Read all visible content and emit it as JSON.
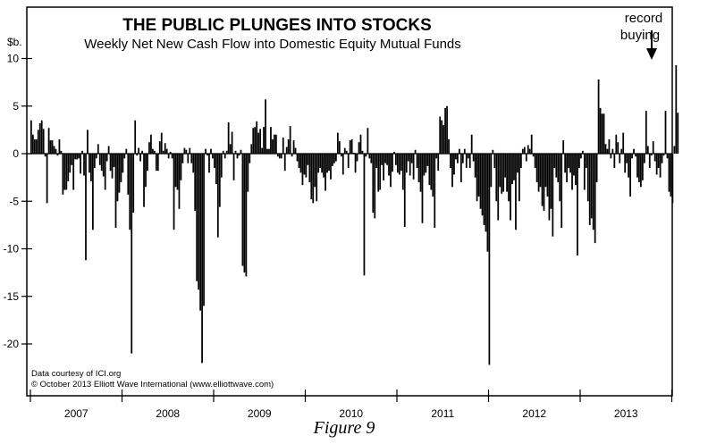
{
  "chart_data": {
    "type": "bar",
    "title": "THE PUBLIC PLUNGES INTO STOCKS",
    "subtitle": "Weekly Net New Cash Flow into Domestic Equity Mutual Funds",
    "ylabel": "$b.",
    "xlabel": "",
    "ylim": [
      -25,
      15
    ],
    "yticks": [
      10,
      5,
      0,
      -5,
      -10,
      -15,
      -20
    ],
    "ytick_labels": [
      "10",
      "5",
      "0",
      "-5",
      "-10",
      "-15",
      "-20"
    ],
    "xlim_years": [
      2007,
      2014
    ],
    "xtick_labels": [
      "2007",
      "2008",
      "2009",
      "2010",
      "2011",
      "2012",
      "2013"
    ],
    "grid": false,
    "annotation": {
      "line1": "record",
      "line2": "buying",
      "target_year": 2013
    },
    "series": [
      {
        "name": "2007",
        "values": [
          3.5,
          2,
          1.5,
          1.5,
          2.5,
          3.2,
          3.5,
          2.6,
          -0.3,
          -5.2,
          2.7,
          1.4,
          1.4,
          0.8,
          0.5,
          -0.2,
          1.5,
          0.3,
          -4.3,
          -3.8,
          -3.8,
          -2.9,
          -2.0,
          -1.2,
          -3.8,
          -0.6,
          -0.6,
          -0.5,
          -2.1,
          0.3,
          -2.3,
          -11.2,
          2.5,
          -2.0,
          -2.9,
          -8.0,
          -1.5,
          -0.5,
          1.0,
          -1.2,
          -1.8,
          -2.4,
          -3.8,
          -0.8,
          0.8,
          -1.8,
          -2.6,
          -1.4,
          -7.8,
          -5.0,
          -4.1,
          -3.0
        ]
      },
      {
        "name": "2008",
        "values": [
          -2.0,
          -0.5,
          0.5,
          -4.3,
          -8.0,
          -21.0,
          -6.2,
          3.5,
          -0.2,
          0.6,
          -0.8,
          0.3,
          -5.6,
          -3.5,
          -1.8,
          1.2,
          2.0,
          0.5,
          0.3,
          -1.8,
          -1.8,
          1.3,
          2.2,
          0.3,
          1.1,
          0.5,
          -0.5,
          0.2,
          -0.5,
          -8.0,
          -3.5,
          -3.8,
          -5.8,
          -2.8,
          -1.0,
          0.6,
          0.4,
          -1.0,
          0.6,
          -1.0,
          -2.0,
          -6.0,
          -13.4,
          -14.3,
          -16.5,
          -22.0,
          -16.0,
          0.5,
          -0.2,
          -2.0,
          0.5,
          -0.5
        ]
      },
      {
        "name": "2009",
        "values": [
          -1.5,
          -3.2,
          -8.8,
          -5.6,
          -2.5,
          0.3,
          -0.5,
          0.3,
          3.3,
          1.0,
          2.3,
          -2.8,
          0.3,
          -0.5,
          -0.2,
          0.4,
          -11.8,
          -12.5,
          -12.9,
          -4.0,
          -1.0,
          1.0,
          2.7,
          2.8,
          3.4,
          2.2,
          2.6,
          0.6,
          2.8,
          5.7,
          0.5,
          0.5,
          2.8,
          1.5,
          2.0,
          2.0,
          -0.3,
          -0.5,
          -0.5,
          1.7,
          -1.8,
          0.7,
          1.5,
          2.9,
          -0.3,
          1.4,
          0.6,
          -0.8,
          -1.5,
          -2.0,
          -3.3,
          -2.2
        ]
      },
      {
        "name": "2010",
        "values": [
          -2.5,
          -1.2,
          -3.0,
          -4.8,
          -5.2,
          -3.5,
          -5.0,
          -2.0,
          -1.5,
          -2.0,
          -2.5,
          -3.9,
          -2.0,
          -1.8,
          -2.7,
          -1.3,
          -1.0,
          -0.8,
          2.2,
          1.3,
          -0.3,
          -2.2,
          0.6,
          0.3,
          -1.5,
          1.4,
          1.5,
          0.1,
          -2.0,
          -0.8,
          1.2,
          2.0,
          0.3,
          -12.8,
          -0.3,
          2.7,
          -0.5,
          -1.0,
          -6.2,
          -6.8,
          -1.5,
          -4.0,
          -3.8,
          -1.2,
          -2.8,
          -1.0,
          -1.2,
          -2.3,
          -3.5,
          -1.9,
          0.2,
          -1.2
        ]
      },
      {
        "name": "2011",
        "values": [
          -2.0,
          -2.2,
          -1.8,
          -3.8,
          -7.7,
          -2.0,
          -0.8,
          -2.3,
          -1.0,
          -2.7,
          0.4,
          -1.5,
          -3.0,
          -4.0,
          -7.3,
          -2.3,
          -2.0,
          -1.3,
          -3.3,
          -3.8,
          -4.5,
          -7.8,
          -0.5,
          -1.8,
          3.9,
          3.5,
          3.0,
          4.8,
          5.0,
          1.5,
          -1.5,
          -3.5,
          -2.2,
          -0.6,
          -1.0,
          0.5,
          -3.0,
          -1.0,
          0.5,
          -1.5,
          -0.5,
          -1.5,
          2.0,
          -0.8,
          -2.5,
          -5.0,
          -4.5,
          -5.8,
          -6.5,
          -7.5,
          -8.2,
          -10.3
        ]
      },
      {
        "name": "2012",
        "values": [
          -22.2,
          -3.5,
          0.4,
          -1.5,
          -5.0,
          -7.0,
          -3.5,
          -4.2,
          -4.0,
          -2.5,
          -4.0,
          -5.0,
          -7.0,
          -3.2,
          -2.8,
          -8.0,
          -2.0,
          -5.0,
          -1.5,
          0.5,
          0.7,
          -0.8,
          0.9,
          0.5,
          2.0,
          -0.3,
          -1.5,
          -3.0,
          -4.0,
          -3.5,
          -5.5,
          -6.0,
          -3.5,
          -4.5,
          -7.0,
          -5.8,
          -8.7,
          -1.5,
          -2.5,
          -3.0,
          -5.0,
          -7.8,
          1.4,
          -2.0,
          -3.0,
          -1.5,
          -2.0,
          -3.8,
          -2.3,
          -3.3,
          -10.7,
          -1.5
        ]
      },
      {
        "name": "2013",
        "values": [
          -0.5,
          0.3,
          -3.8,
          -1.5,
          -5.0,
          -7.5,
          -6.8,
          -8.0,
          -9.4,
          -3.0,
          7.8,
          4.8,
          4.2,
          4.2,
          1.0,
          0.5,
          1.5,
          -0.5,
          0.5,
          -1.5,
          2.0,
          1.2,
          -1.0,
          0.5,
          2.2,
          -2.0,
          -1.0,
          -2.5,
          -4.5,
          -0.5,
          0.5,
          -0.3,
          -2.5,
          -3.0,
          -3.5,
          -2.8,
          -1.0,
          4.5,
          0.8,
          -1.5,
          -0.2,
          1.3,
          -0.8,
          -2.2,
          -1.5,
          -2.5,
          -1.0,
          -0.2,
          4.5,
          -0.5,
          -4.0,
          -4.5,
          -5.2,
          0.8,
          9.3,
          4.3
        ]
      }
    ]
  },
  "footer": {
    "source": "Data courtesy of ICI.org",
    "copyright": "© October 2013 Elliott Wave International (www.elliottwave.com)",
    "figure_label": "Figure 9"
  }
}
